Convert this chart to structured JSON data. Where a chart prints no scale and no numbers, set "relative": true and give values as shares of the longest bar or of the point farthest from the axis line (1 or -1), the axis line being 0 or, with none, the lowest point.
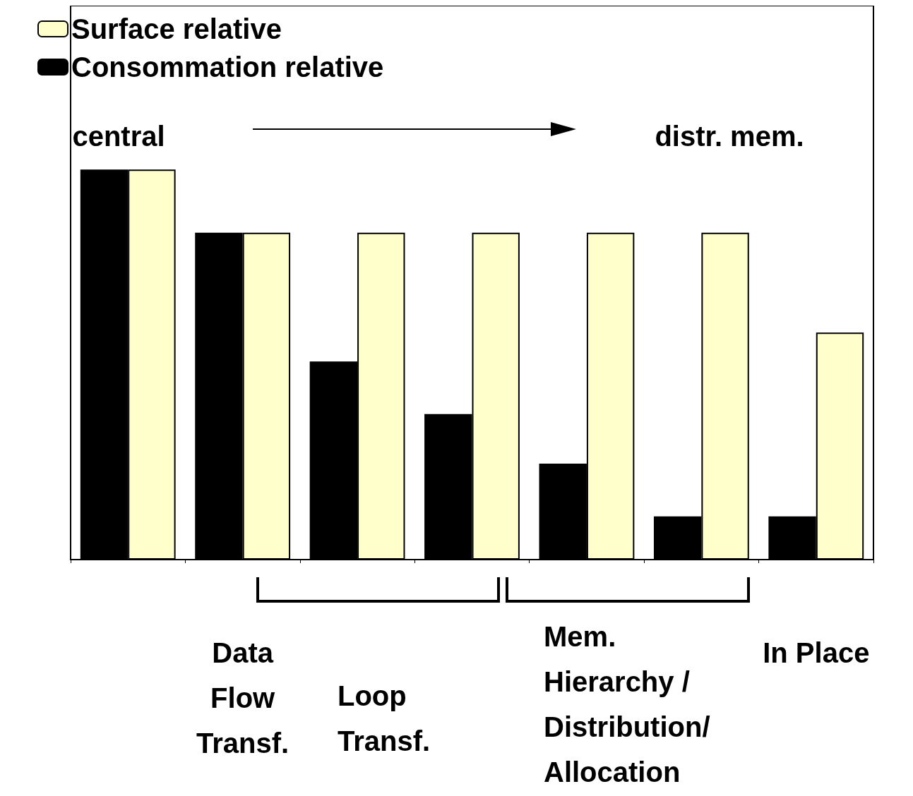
{
  "chart_data": {
    "type": "bar",
    "relative": true,
    "categories": [
      null,
      "Data\nFlow\nTransf.",
      null,
      null,
      null,
      null,
      "In Place"
    ],
    "series": [
      {
        "name": "Surface relative",
        "color": "#ffffcc",
        "values": [
          1,
          0.838,
          0.838,
          0.838,
          0.838,
          0.838,
          0.582
        ]
      },
      {
        "name": "Consommation relative",
        "color": "#000000",
        "values": [
          1,
          0.838,
          0.508,
          0.373,
          0.246,
          0.111,
          0.111
        ]
      }
    ],
    "annotations": [
      "central",
      "distr. mem.",
      "Loop\nTransf.",
      "Mem.\nHierarchy /\nDistribution/\nAllocation"
    ],
    "legend": "top left",
    "grid": false
  }
}
